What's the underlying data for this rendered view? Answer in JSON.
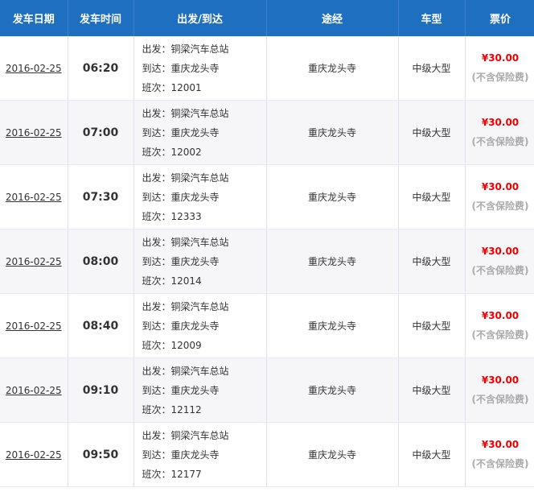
{
  "headers": [
    "发车日期",
    "发车时间",
    "出发/到达",
    "途经",
    "车型",
    "票价"
  ],
  "labels": {
    "depart": "出发：",
    "arrive": "到达：",
    "number": "班次："
  },
  "rows": [
    {
      "date": "2016-02-25",
      "time": "06:20",
      "from": "铜梁汽车总站",
      "to": "重庆龙头寺",
      "number": "12001",
      "via": "重庆龙头寺",
      "type": "中级大型",
      "price": "¥30.00",
      "note": "(不含保险费)"
    },
    {
      "date": "2016-02-25",
      "time": "07:00",
      "from": "铜梁汽车总站",
      "to": "重庆龙头寺",
      "number": "12002",
      "via": "重庆龙头寺",
      "type": "中级大型",
      "price": "¥30.00",
      "note": "(不含保险费)"
    },
    {
      "date": "2016-02-25",
      "time": "07:30",
      "from": "铜梁汽车总站",
      "to": "重庆龙头寺",
      "number": "12333",
      "via": "重庆龙头寺",
      "type": "中级大型",
      "price": "¥30.00",
      "note": "(不含保险费)"
    },
    {
      "date": "2016-02-25",
      "time": "08:00",
      "from": "铜梁汽车总站",
      "to": "重庆龙头寺",
      "number": "12014",
      "via": "重庆龙头寺",
      "type": "中级大型",
      "price": "¥30.00",
      "note": "(不含保险费)"
    },
    {
      "date": "2016-02-25",
      "time": "08:40",
      "from": "铜梁汽车总站",
      "to": "重庆龙头寺",
      "number": "12009",
      "via": "重庆龙头寺",
      "type": "中级大型",
      "price": "¥30.00",
      "note": "(不含保险费)"
    },
    {
      "date": "2016-02-25",
      "time": "09:10",
      "from": "铜梁汽车总站",
      "to": "重庆龙头寺",
      "number": "12112",
      "via": "重庆龙头寺",
      "type": "中级大型",
      "price": "¥30.00",
      "note": "(不含保险费)"
    },
    {
      "date": "2016-02-25",
      "time": "09:50",
      "from": "铜梁汽车总站",
      "to": "重庆龙头寺",
      "number": "12177",
      "via": "重庆龙头寺",
      "type": "中级大型",
      "price": "¥30.00",
      "note": "(不含保险费)"
    }
  ],
  "colors": {
    "header": "#1e6fc0",
    "price": "#ee0000",
    "note": "#aaaaaa"
  }
}
